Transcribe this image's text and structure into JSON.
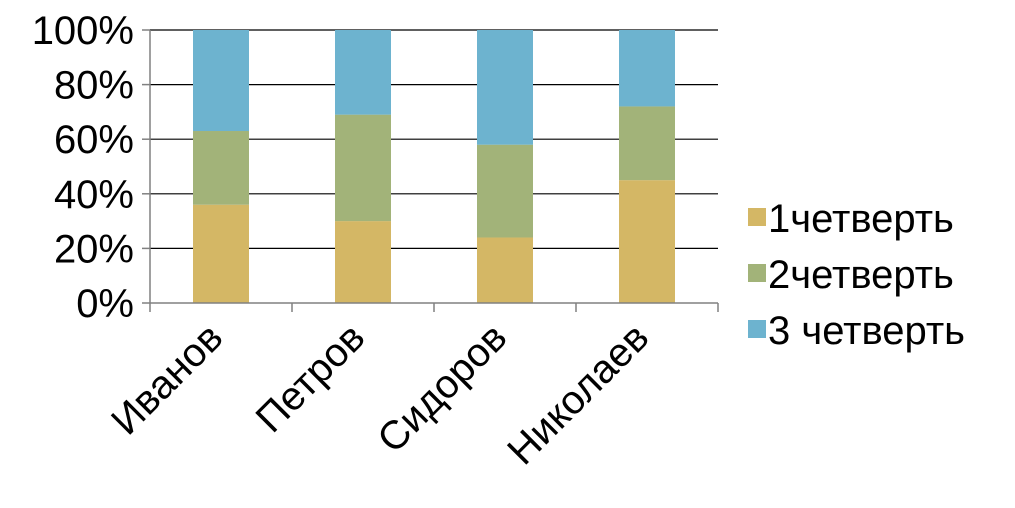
{
  "chart_data": {
    "type": "bar",
    "stacked": true,
    "percent_stacked": true,
    "categories": [
      "Иванов",
      "Петров",
      "Сидоров",
      "Николаев"
    ],
    "series": [
      {
        "name": "1четверть",
        "color": "#d4b765",
        "values": [
          36,
          30,
          24,
          45
        ]
      },
      {
        "name": "2четверть",
        "color": "#a2b379",
        "values": [
          27,
          39,
          34,
          27
        ]
      },
      {
        "name": "3 четверть",
        "color": "#6db3cf",
        "values": [
          37,
          31,
          42,
          28
        ]
      }
    ],
    "y_ticks": [
      "0%",
      "20%",
      "40%",
      "60%",
      "80%",
      "100%"
    ],
    "ylim": [
      0,
      100
    ],
    "grid": true,
    "legend_position": "right",
    "title": "",
    "xlabel": "",
    "ylabel": ""
  }
}
